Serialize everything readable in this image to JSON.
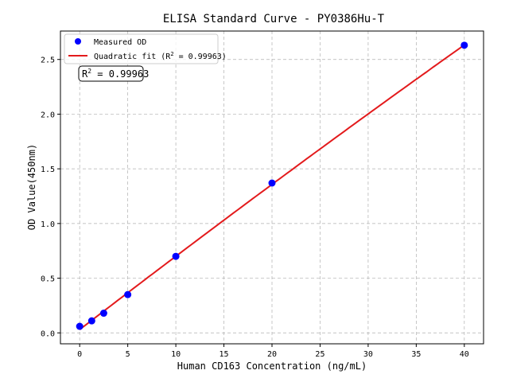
{
  "chart_data": {
    "type": "scatter",
    "title": "ELISA Standard Curve - PY0386Hu-T",
    "xlabel": "Human CD163 Concentration (ng/mL)",
    "ylabel": "OD Value(450nm)",
    "xlim": [
      -2,
      42
    ],
    "ylim": [
      -0.1,
      2.76
    ],
    "xticks": [
      0,
      5,
      10,
      15,
      20,
      25,
      30,
      35,
      40
    ],
    "yticks": [
      0.0,
      0.5,
      1.0,
      1.5,
      2.0,
      2.5
    ],
    "ytick_labels": [
      "0.0",
      "0.5",
      "1.0",
      "1.5",
      "2.0",
      "2.5"
    ],
    "grid": true,
    "legend_position": "top-left",
    "series": [
      {
        "name": "Measured OD",
        "kind": "scatter",
        "color": "#0000ff",
        "x": [
          0,
          1.25,
          2.5,
          5,
          10,
          20,
          40
        ],
        "y": [
          0.06,
          0.11,
          0.18,
          0.35,
          0.7,
          1.37,
          2.63
        ]
      },
      {
        "name": "Quadratic fit (R² = 0.99963)",
        "kind": "line",
        "color": "#e31a1c"
      }
    ],
    "legend": {
      "scatter_label": "Measured OD",
      "fit_prefix": "Quadratic fit (R",
      "fit_suffix": " = 0.99963)"
    },
    "annotation": {
      "prefix": "R",
      "sup": "2",
      "suffix": " = 0.99963"
    }
  }
}
